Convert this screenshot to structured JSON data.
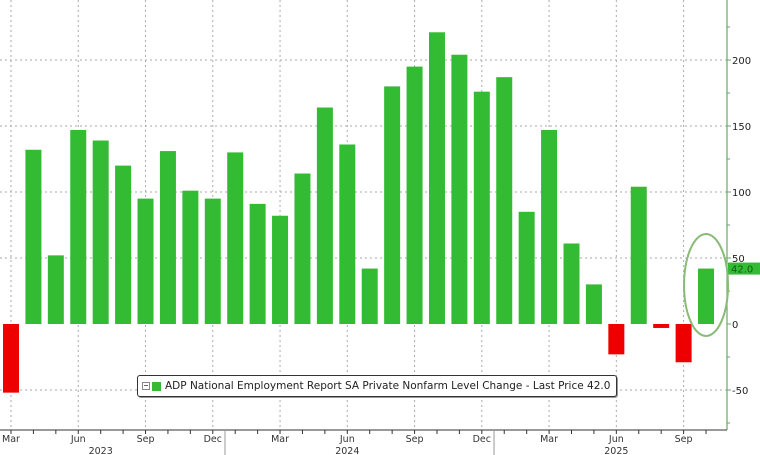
{
  "chart_data": {
    "type": "bar",
    "title": "",
    "legend": {
      "label": "ADP National Employment Report SA Private Nonfarm Level Change - Last Price 42.0",
      "position": "bottom-left inside plot"
    },
    "xlabel": "",
    "ylabel": "",
    "ylim": [
      -80,
      245
    ],
    "yticks": [
      -50,
      0,
      50,
      100,
      150,
      200
    ],
    "y_axis_side": "right",
    "grid": true,
    "last_price_label": "42.0",
    "highlight": "Oct 2025 bar circled in green",
    "x_tick_labels": [
      "Mar",
      "Jun",
      "Sep",
      "Dec",
      "Mar",
      "Jun",
      "Sep",
      "Dec",
      "Mar",
      "Jun",
      "Sep"
    ],
    "x_year_labels": [
      "2023",
      "2024",
      "2025"
    ],
    "categories": [
      "Mar 2023",
      "Apr 2023",
      "May 2023",
      "Jun 2023",
      "Jul 2023",
      "Aug 2023",
      "Sep 2023",
      "Oct 2023",
      "Nov 2023",
      "Dec 2023",
      "Jan 2024",
      "Feb 2024",
      "Mar 2024",
      "Apr 2024",
      "May 2024",
      "Jun 2024",
      "Jul 2024",
      "Aug 2024",
      "Sep 2024",
      "Oct 2024",
      "Nov 2024",
      "Dec 2024",
      "Jan 2025",
      "Feb 2025",
      "Mar 2025",
      "Apr 2025",
      "May 2025",
      "Jun 2025",
      "Jul 2025",
      "Aug 2025",
      "Sep 2025",
      "Oct 2025"
    ],
    "values": [
      -52,
      132,
      52,
      147,
      139,
      120,
      95,
      131,
      101,
      95,
      130,
      91,
      82,
      114,
      164,
      136,
      42,
      180,
      195,
      221,
      204,
      176,
      187,
      85,
      147,
      61,
      30,
      -23,
      104,
      -3,
      -29,
      42
    ],
    "colors": {
      "positive": "#33bb33",
      "negative": "#ee0000",
      "axis": "#66aa66",
      "highlight_circle": "#88bb77"
    }
  }
}
